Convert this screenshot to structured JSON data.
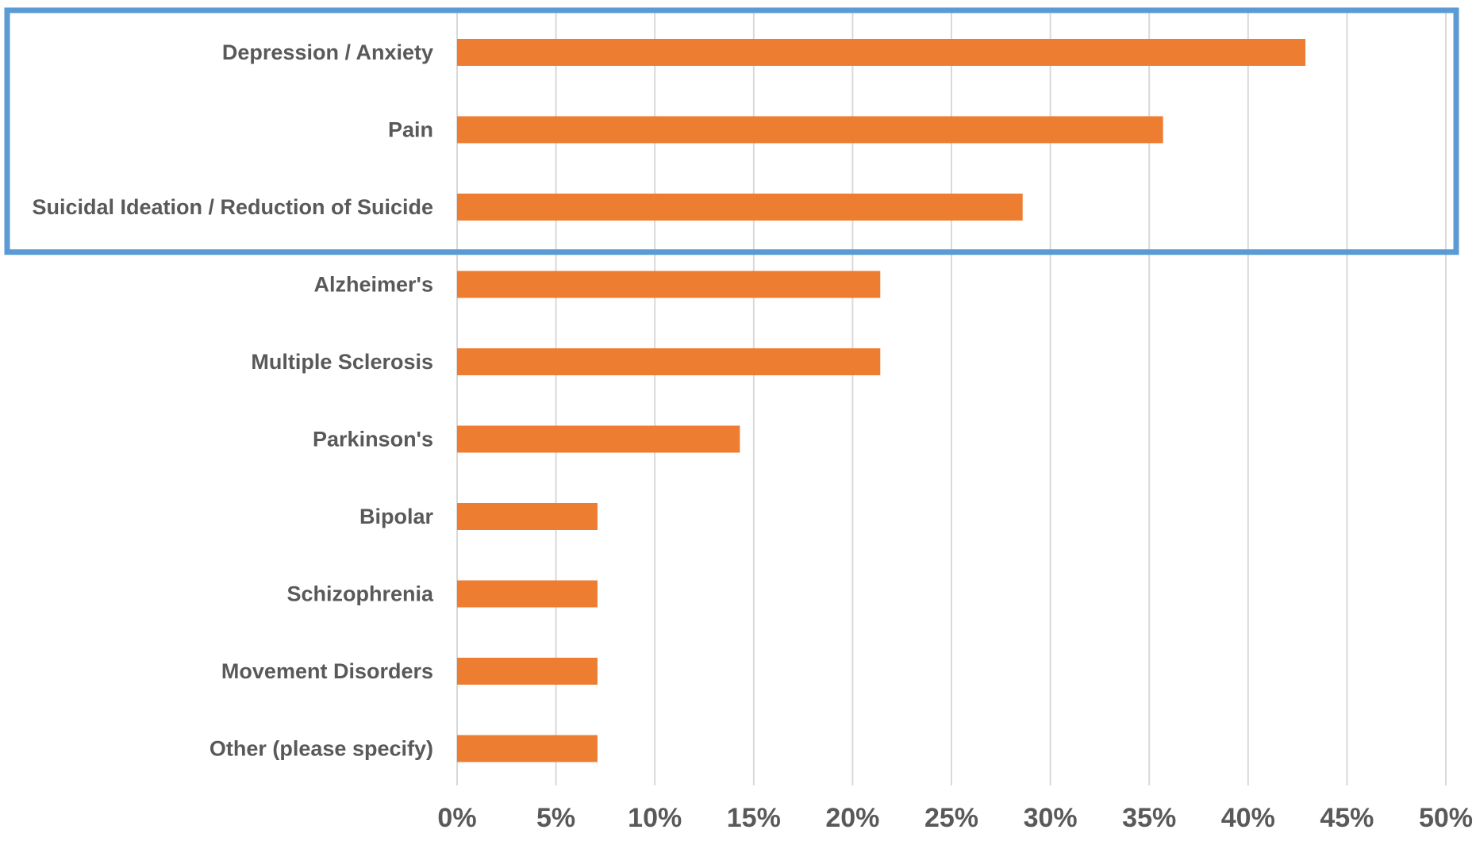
{
  "chart_data": {
    "type": "bar",
    "orientation": "horizontal",
    "categories": [
      "Depression / Anxiety",
      "Pain",
      "Suicidal Ideation / Reduction of Suicide",
      "Alzheimer's",
      "Multiple Sclerosis",
      "Parkinson's",
      "Bipolar",
      "Schizophrenia",
      "Movement Disorders",
      "Other (please specify)"
    ],
    "values": [
      42.9,
      35.7,
      28.6,
      21.4,
      21.4,
      14.3,
      7.1,
      7.1,
      7.1,
      7.1
    ],
    "title": "",
    "xlabel": "",
    "ylabel": "",
    "xlim": [
      0,
      50
    ],
    "x_ticks": [
      0,
      5,
      10,
      15,
      20,
      25,
      30,
      35,
      40,
      45,
      50
    ],
    "x_tick_labels": [
      "0%",
      "5%",
      "10%",
      "15%",
      "20%",
      "25%",
      "30%",
      "35%",
      "40%",
      "45%",
      "50%"
    ],
    "grid": "vertical",
    "bar_color": "#ED7D31",
    "gridline_color": "#D9D9D9",
    "highlight": {
      "categories": [
        "Depression / Anxiety",
        "Pain",
        "Suicidal Ideation / Reduction of Suicide"
      ],
      "color": "#5B9BD5"
    }
  }
}
